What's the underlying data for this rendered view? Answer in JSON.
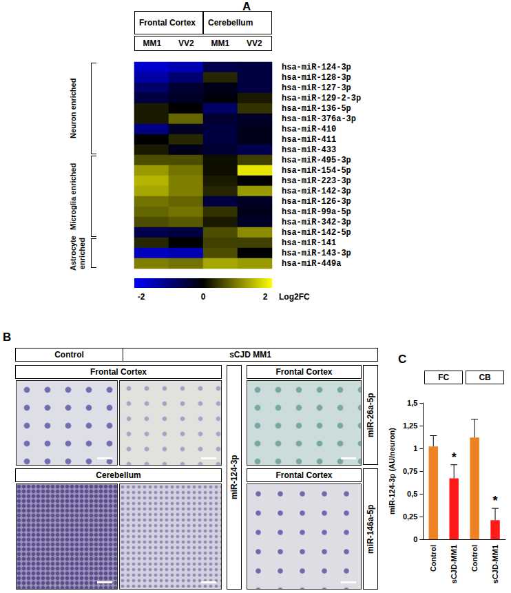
{
  "panel_labels": [
    "A",
    "B",
    "C"
  ],
  "chart_data": [
    {
      "type": "heatmap",
      "region_headers": [
        {
          "label": "Frontal Cortex",
          "columns": [
            0,
            1
          ]
        },
        {
          "label": "Cerebellum",
          "columns": [
            2,
            3
          ]
        }
      ],
      "columns": [
        "MM1",
        "VV2",
        "MM1",
        "VV2"
      ],
      "rows": [
        "hsa-miR-124-3p",
        "hsa-miR-128-3p",
        "hsa-miR-127-3p",
        "hsa-miR-129-2-3p",
        "hsa-miR-136-5p",
        "hsa-miR-376a-3p",
        "hsa-miR-410",
        "hsa-miR-411",
        "hsa-miR-433",
        "hsa-miR-495-3p",
        "hsa-miR-154-5p",
        "hsa-miR-223-3p",
        "hsa-miR-142-3p",
        "hsa-miR-126-3p",
        "hsa-miR-99a-5p",
        "hsa-miR-342-3p",
        "hsa-miR-142-5p",
        "hsa-miR-141",
        "hsa-miR-143-3p",
        "hsa-miR-449a"
      ],
      "values": [
        [
          -1.6,
          -1.4,
          -0.6,
          -0.5
        ],
        [
          -1.3,
          -0.9,
          0.3,
          -0.5
        ],
        [
          -0.8,
          -0.4,
          -0.2,
          -0.5
        ],
        [
          -0.5,
          -0.3,
          -0.1,
          0.2
        ],
        [
          0.2,
          0.0,
          -0.8,
          0.4
        ],
        [
          0.2,
          0.8,
          -0.4,
          -0.3
        ],
        [
          -1.0,
          -0.3,
          -0.5,
          -0.2
        ],
        [
          0.0,
          0.3,
          -0.5,
          -0.2
        ],
        [
          0.2,
          -0.2,
          -0.4,
          -0.6
        ],
        [
          0.6,
          0.6,
          0.1,
          0.5
        ],
        [
          1.2,
          0.9,
          0.1,
          1.8
        ],
        [
          1.4,
          1.0,
          0.2,
          0.0
        ],
        [
          1.3,
          1.0,
          0.3,
          1.2
        ],
        [
          0.9,
          0.8,
          -0.5,
          -0.3
        ],
        [
          0.8,
          0.9,
          0.4,
          -0.2
        ],
        [
          0.6,
          0.7,
          0.2,
          -0.3
        ],
        [
          -0.6,
          -0.5,
          0.6,
          1.1
        ],
        [
          0.3,
          0.0,
          0.5,
          0.5
        ],
        [
          -1.5,
          -1.4,
          0.6,
          0.0
        ],
        [
          1.0,
          0.9,
          1.3,
          1.2
        ]
      ],
      "row_groups": [
        {
          "label": "Neuron enriched",
          "rows": [
            0,
            8
          ]
        },
        {
          "label": "Microglia enriched",
          "rows": [
            9,
            16
          ]
        },
        {
          "label": "Astrocyte enriched",
          "rows": [
            17,
            19
          ]
        }
      ],
      "colorbar": {
        "range": [
          -2,
          2
        ],
        "ticks": [
          -2,
          0,
          2
        ],
        "label": "Log2FC",
        "colors": [
          "#0000ff",
          "#000000",
          "#ffff00"
        ]
      }
    },
    {
      "type": "bar",
      "groups": [
        {
          "label": "FC",
          "categories": [
            0,
            1
          ]
        },
        {
          "label": "CB",
          "categories": [
            2,
            3
          ]
        }
      ],
      "categories": [
        "Control",
        "sCJD-MM1",
        "Control",
        "sCJD-MM1"
      ],
      "values": [
        1.02,
        0.67,
        1.12,
        0.21
      ],
      "errors": [
        0.12,
        0.15,
        0.2,
        0.13
      ],
      "annotations": [
        null,
        "*",
        null,
        "*"
      ],
      "colors": [
        "#ee8122",
        "#ff1a1a",
        "#ee8122",
        "#ff1a1a"
      ],
      "ylabel": "miR-124-3p (AU/neuron)",
      "ylim": [
        0,
        1.5
      ],
      "yticks": [
        0,
        {
          "value": 0.25,
          "label": "0,25"
        },
        {
          "value": 0.5,
          "label": "0,5"
        },
        {
          "value": 0.75,
          "label": "0,75"
        },
        1,
        {
          "value": 1.25,
          "label": "1,25"
        },
        {
          "value": 1.5,
          "label": "1,5"
        }
      ],
      "grid": false
    }
  ],
  "micrographs": {
    "conditions": [
      "Control",
      "sCJD MM1"
    ],
    "left": {
      "probe": "miR-124-3p",
      "regions": [
        "Frontal Cortex",
        "Cerebellum"
      ]
    },
    "right": [
      {
        "region": "Frontal Cortex",
        "probe": "miR-26a-5p"
      },
      {
        "region": "Frontal Cortex",
        "probe": "miR-146a-5p"
      }
    ]
  }
}
